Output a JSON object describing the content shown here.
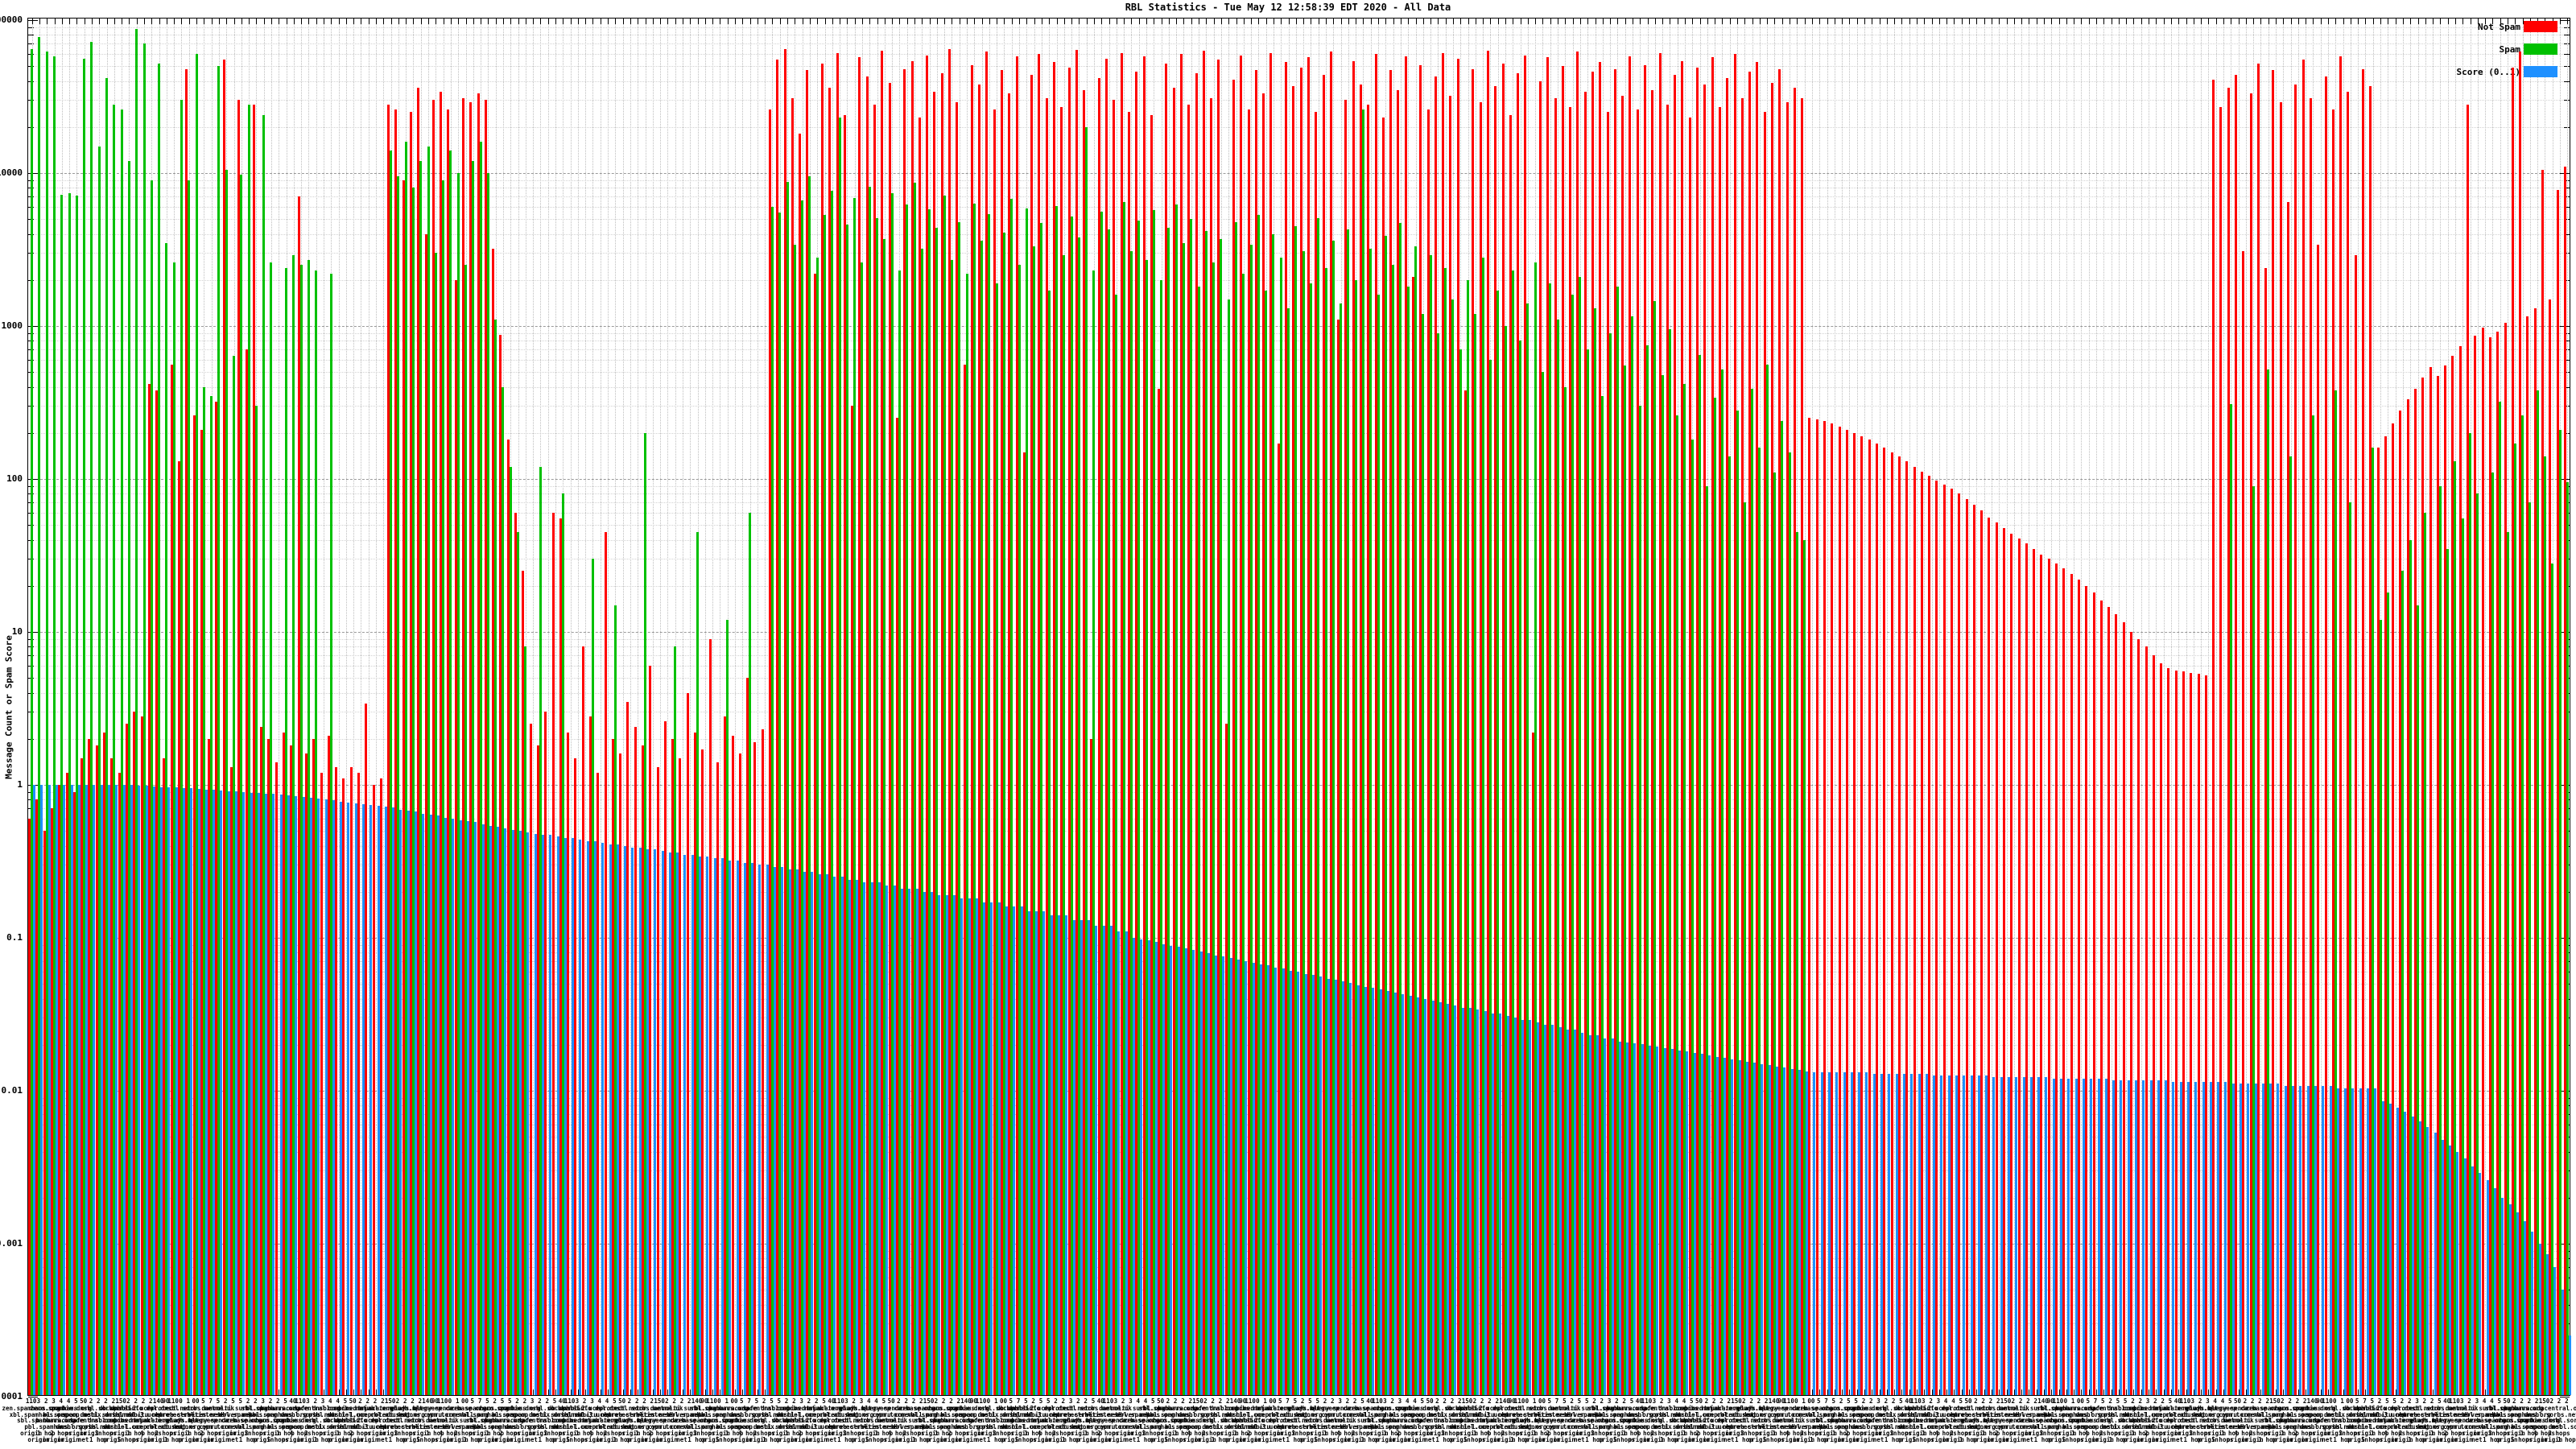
{
  "title": "RBL Statistics - Tue May 12 12:58:39 EDT 2020 - All Data",
  "y_axis": {
    "label": "Message Count or Spam Score",
    "scale": "log",
    "min": 0.0001,
    "max": 100000,
    "ticks": [
      {
        "label": "100000",
        "value": 100000
      },
      {
        "label": "10000",
        "value": 10000
      },
      {
        "label": "1000",
        "value": 1000
      },
      {
        "label": "100",
        "value": 100
      },
      {
        "label": "10",
        "value": 10
      },
      {
        "label": "1",
        "value": 1
      },
      {
        "label": "0.1",
        "value": 0.1
      },
      {
        "label": "0.01",
        "value": 0.01
      },
      {
        "label": "0.001",
        "value": 0.001
      },
      {
        "label": "0.0001",
        "value": 0.0001
      }
    ]
  },
  "legend": [
    {
      "label": "Not Spam",
      "color": "#ff0000"
    },
    {
      "label": "Spam",
      "color": "#00c000"
    },
    {
      "label": "Score (0..1)",
      "color": "#1e90ff"
    }
  ],
  "x_axis": {
    "legible_fragments": [
      "origin",
      "1 hop",
      "2 hops",
      "3 hops",
      "4 hops",
      "5 hops",
      "net net net origin",
      "origin origin origin",
      "1 hop1 hop",
      "110",
      "150",
      "140",
      "90",
      "0 1 00",
      "40",
      "50"
    ],
    "label_numbers_cycle": [
      "110",
      "3",
      "2",
      "3",
      "4",
      "4",
      "5",
      "50",
      "2",
      "2",
      "2",
      "2",
      "150",
      "2",
      "2",
      "2",
      "2",
      "140",
      "90",
      "110",
      "0",
      "1",
      "00",
      "5",
      "7",
      "5",
      "2",
      "5",
      "5",
      "2",
      "2",
      "3",
      "2",
      "2",
      "5",
      "40"
    ],
    "label_hosts_cycle": [
      "zen.spamhaus.org",
      "xbl.spamhaus.org",
      "sbl.spamhaus.org",
      "pbl.spamhaus.org",
      "zero.spamhaus.org",
      "bl.spamcop.net",
      "b.barracudacentral.org",
      "dnsbl.sorbs.net",
      "zombie.dnsbl.sorbs.net",
      "spam.dnsbl.sorbs.net",
      "safe.dnsbl.sorbs.net",
      "psbl.surriel.com",
      "db.wpbl.info",
      "ix.dnsbl.manitu.net",
      "combined.njabl.org",
      "dnsbl-1.uceprotect.net",
      "dnsbl-2.uceprotect.net",
      "dnsbl-3.uceprotect.net",
      "truncate.gbudb.net",
      "cbl.abuseat.org",
      "dul.dnsbl.sorbs.net",
      "korea.services.net",
      "relays.bl.gweep.ca",
      "bogons.cymru.com",
      "tor.dan.me.uk",
      "rbl.interserver.net",
      "query.senderbase.org",
      "opm.tornevall.org",
      "multi.surbl.org",
      "dbl.spamhaus.org"
    ],
    "label_qualifiers_cycle": [
      "origin",
      "origin",
      "1 hop",
      "origin",
      "2 hops",
      "origin",
      "origin",
      "net",
      "origin",
      "1 hop",
      "3 hops",
      "origin",
      "origin",
      "5 hops",
      "1 hop",
      "origin",
      "4 hops",
      "origin",
      "2 hops",
      "1 hop"
    ]
  },
  "chart_data": {
    "type": "bar",
    "title": "RBL Statistics - Tue May 12 12:58:39 EDT 2020 - All Data",
    "xlabel": "",
    "ylabel": "Message Count or Spam Score",
    "y_scale": "log",
    "ylim": [
      0.0001,
      100000
    ],
    "grid": "horizontal dashed at decades, dotted minors, vertical dotted per category",
    "legend_position": "top-right",
    "series": [
      {
        "name": "Not Spam",
        "color": "#ff0000",
        "values": [
          0.6,
          0.8,
          0.5,
          0.7,
          1,
          1.2,
          0.9,
          1.5,
          2,
          1.8,
          2.2,
          1.5,
          1.2,
          2.5,
          3,
          2.8,
          420,
          380,
          1.5,
          560,
          130,
          48000,
          260,
          210,
          2,
          320,
          55000,
          1.3,
          30000,
          700,
          28000,
          2.4,
          2,
          1.4,
          2.2,
          1.8,
          7000,
          1.6,
          2,
          1.2,
          2.1,
          1.3,
          1.1,
          1.3,
          1.2,
          3.4,
          1,
          1.1,
          28000,
          26000,
          9000,
          25000,
          36000,
          4000,
          30000,
          34000,
          26000,
          2000,
          31000,
          29000,
          33000,
          30000,
          3200,
          870,
          180,
          60,
          25,
          2.5,
          1.8,
          3,
          60,
          55,
          2.2,
          1.5,
          8,
          2.8,
          1.2,
          45,
          2,
          1.6,
          3.5,
          2.4,
          1.8,
          6,
          1.3,
          2.6,
          2,
          1.5,
          4,
          2.2,
          1.7,
          9,
          1.4,
          2.8,
          2.1,
          1.6,
          5,
          1.9,
          2.3,
          26000,
          55000,
          65000,
          31000,
          18000,
          47000,
          2200,
          52000,
          36000,
          61000,
          24000,
          300,
          57000,
          43000,
          28000,
          63000,
          39000,
          250,
          48000,
          54000,
          23000,
          59000,
          34000,
          45000,
          65000,
          29000,
          560,
          51000,
          38000,
          62000,
          26000,
          47000,
          33000,
          58000,
          150,
          44000,
          60000,
          31000,
          53000,
          27000,
          49000,
          64000,
          35000,
          2,
          42000,
          56000,
          30000,
          61000,
          25000,
          46000,
          58000,
          24000,
          390,
          52000,
          36000,
          60000,
          28000,
          45000,
          63000,
          31000,
          55000,
          2.5,
          41000,
          59000,
          26000,
          47000,
          33000,
          61000,
          170,
          53000,
          37000,
          49000,
          57000,
          25000,
          44000,
          62000,
          1100,
          30000,
          54000,
          38000,
          28000,
          60000,
          23000,
          47000,
          35000,
          58000,
          2100,
          51000,
          26000,
          43000,
          61000,
          32000,
          56000,
          380,
          48000,
          29000,
          63000,
          37000,
          52000,
          24000,
          45000,
          59000,
          2.2,
          40000,
          57000,
          31000,
          50000,
          27000,
          62000,
          34000,
          46000,
          53000,
          25000,
          48000,
          32000,
          58000,
          26000,
          51000,
          35000,
          61000,
          28000,
          44000,
          54000,
          23000,
          49000,
          38000,
          57000,
          27000,
          42000,
          60000,
          31000,
          46000,
          53000,
          25000,
          39000,
          48000,
          29000,
          36000,
          31000,
          250,
          245,
          240,
          230,
          220,
          210,
          200,
          190,
          180,
          170,
          160,
          150,
          140,
          130,
          120,
          112,
          105,
          98,
          92,
          86,
          80,
          74,
          68,
          62,
          56,
          52,
          48,
          44,
          41,
          38,
          35,
          32,
          30,
          28,
          26,
          24,
          22,
          20,
          18,
          16,
          14.5,
          13,
          11.5,
          10,
          9,
          8,
          7,
          6.2,
          5.8,
          5.6,
          5.5,
          5.4,
          5.3,
          5.2,
          41000,
          27000,
          36000,
          44000,
          3100,
          33000,
          52000,
          2400,
          47000,
          29000,
          6500,
          38000,
          55000,
          31000,
          3400,
          43000,
          26000,
          58000,
          34000,
          2900,
          48000,
          37000,
          160,
          190,
          230,
          280,
          330,
          390,
          460,
          540,
          470,
          550,
          640,
          740,
          28000,
          860,
          980,
          840,
          920,
          1050,
          49000,
          62000,
          1150,
          1300,
          10500,
          1500,
          7800,
          11000
        ]
      },
      {
        "name": "Spam",
        "color": "#00c000",
        "values": [
          65000,
          78000,
          62000,
          58000,
          7200,
          7400,
          7100,
          56000,
          72000,
          15000,
          42000,
          28000,
          26000,
          12000,
          88000,
          70000,
          9000,
          52000,
          3500,
          2600,
          30000,
          9000,
          60000,
          400,
          350,
          50000,
          10500,
          640,
          9800,
          28000,
          300,
          24000,
          2600,
          0,
          2400,
          2900,
          2500,
          2700,
          2300,
          0,
          2200,
          0,
          0,
          0,
          0,
          0,
          0,
          0,
          14000,
          9500,
          16000,
          8000,
          12000,
          15000,
          3000,
          9000,
          14000,
          10000,
          2500,
          12000,
          16000,
          10000,
          1100,
          400,
          120,
          45,
          8,
          0,
          120,
          0,
          0,
          80,
          0,
          0,
          0,
          30,
          0,
          0,
          15,
          0,
          0,
          0,
          200,
          0,
          0,
          0,
          8,
          0,
          0,
          45,
          0,
          0,
          0,
          12,
          0,
          0,
          60,
          0,
          0,
          6000,
          5500,
          8800,
          3400,
          6600,
          9500,
          2800,
          5300,
          7700,
          23000,
          4600,
          6900,
          2600,
          8100,
          5100,
          3700,
          7400,
          2300,
          6200,
          8600,
          3200,
          5800,
          4400,
          7100,
          2700,
          4800,
          2200,
          6300,
          3600,
          5400,
          1900,
          4100,
          6800,
          2500,
          5900,
          3300,
          4700,
          1700,
          6100,
          2900,
          5200,
          3800,
          20000,
          2300,
          5600,
          4300,
          1600,
          6500,
          3100,
          4900,
          2700,
          5700,
          2000,
          4400,
          6200,
          3500,
          5000,
          1800,
          4200,
          2600,
          3700,
          1500,
          4800,
          2200,
          3400,
          5300,
          1700,
          4000,
          2800,
          1300,
          4500,
          3100,
          1900,
          5100,
          2400,
          3600,
          1400,
          4300,
          2000,
          26000,
          3200,
          1600,
          3900,
          2500,
          4700,
          1800,
          3300,
          1200,
          2900,
          900,
          2400,
          1500,
          700,
          2000,
          1200,
          2800,
          600,
          1700,
          1000,
          2300,
          800,
          1400,
          2600,
          500,
          1900,
          1100,
          400,
          1600,
          2100,
          700,
          1300,
          350,
          900,
          1800,
          550,
          1150,
          300,
          750,
          1450,
          480,
          950,
          260,
          420,
          180,
          650,
          90,
          340,
          520,
          140,
          280,
          70,
          390,
          160,
          560,
          110,
          240,
          150,
          45,
          40,
          0,
          0,
          0,
          0,
          0,
          0,
          0,
          0,
          0,
          0,
          0,
          0,
          0,
          0,
          0,
          0,
          0,
          0,
          0,
          0,
          0,
          0,
          0,
          0,
          0,
          0,
          0,
          0,
          0,
          0,
          0,
          0,
          0,
          0,
          0,
          0,
          0,
          0,
          0,
          0,
          0,
          0,
          0,
          0,
          0,
          0,
          0,
          0,
          0,
          0,
          0,
          0,
          0,
          0,
          0,
          0,
          310,
          0,
          0,
          90,
          0,
          520,
          0,
          0,
          140,
          0,
          0,
          260,
          0,
          0,
          380,
          0,
          70,
          0,
          0,
          160,
          12,
          18,
          0,
          25,
          40,
          15,
          60,
          0,
          90,
          35,
          130,
          55,
          200,
          80,
          0,
          110,
          320,
          45,
          170,
          260,
          70,
          380,
          140,
          28,
          210,
          95
        ]
      },
      {
        "name": "Score (0..1)",
        "color": "#1e90ff",
        "values": [
          1,
          1,
          1,
          1,
          1,
          1,
          1,
          1,
          1,
          1,
          1,
          1,
          1,
          1,
          0.99,
          0.99,
          0.98,
          0.97,
          0.97,
          0.96,
          0.95,
          0.95,
          0.94,
          0.93,
          0.93,
          0.92,
          0.91,
          0.91,
          0.9,
          0.89,
          0.89,
          0.88,
          0.87,
          0.86,
          0.85,
          0.84,
          0.83,
          0.82,
          0.81,
          0.8,
          0.79,
          0.78,
          0.77,
          0.76,
          0.75,
          0.74,
          0.73,
          0.72,
          0.71,
          0.69,
          0.68,
          0.67,
          0.65,
          0.64,
          0.63,
          0.61,
          0.6,
          0.59,
          0.58,
          0.57,
          0.55,
          0.54,
          0.53,
          0.52,
          0.51,
          0.5,
          0.49,
          0.48,
          0.47,
          0.47,
          0.46,
          0.45,
          0.45,
          0.44,
          0.43,
          0.43,
          0.42,
          0.41,
          0.41,
          0.4,
          0.39,
          0.39,
          0.38,
          0.38,
          0.37,
          0.36,
          0.36,
          0.35,
          0.35,
          0.34,
          0.34,
          0.33,
          0.33,
          0.32,
          0.32,
          0.31,
          0.31,
          0.3,
          0.3,
          0.29,
          0.29,
          0.28,
          0.28,
          0.27,
          0.27,
          0.26,
          0.26,
          0.25,
          0.25,
          0.24,
          0.24,
          0.23,
          0.23,
          0.23,
          0.22,
          0.22,
          0.21,
          0.21,
          0.21,
          0.2,
          0.2,
          0.19,
          0.19,
          0.19,
          0.18,
          0.18,
          0.18,
          0.17,
          0.17,
          0.17,
          0.16,
          0.16,
          0.16,
          0.15,
          0.15,
          0.15,
          0.14,
          0.14,
          0.14,
          0.13,
          0.13,
          0.13,
          0.12,
          0.12,
          0.12,
          0.11,
          0.11,
          0.1,
          0.098,
          0.096,
          0.094,
          0.091,
          0.089,
          0.087,
          0.085,
          0.083,
          0.081,
          0.079,
          0.077,
          0.076,
          0.074,
          0.072,
          0.07,
          0.069,
          0.067,
          0.066,
          0.064,
          0.063,
          0.061,
          0.06,
          0.058,
          0.057,
          0.056,
          0.054,
          0.053,
          0.052,
          0.051,
          0.049,
          0.048,
          0.047,
          0.046,
          0.045,
          0.044,
          0.043,
          0.042,
          0.041,
          0.04,
          0.039,
          0.038,
          0.037,
          0.036,
          0.035,
          0.035,
          0.034,
          0.033,
          0.032,
          0.032,
          0.031,
          0.03,
          0.029,
          0.029,
          0.028,
          0.027,
          0.027,
          0.026,
          0.025,
          0.025,
          0.024,
          0.023,
          0.023,
          0.022,
          0.022,
          0.021,
          0.0208,
          0.0205,
          0.0201,
          0.0197,
          0.0194,
          0.019,
          0.0187,
          0.0183,
          0.018,
          0.0177,
          0.0174,
          0.017,
          0.0167,
          0.0164,
          0.0161,
          0.0158,
          0.0155,
          0.0153,
          0.015,
          0.0147,
          0.0144,
          0.0142,
          0.0139,
          0.0137,
          0.0134,
          0.0132,
          0.0132,
          0.0132,
          0.0132,
          0.0132,
          0.0132,
          0.0132,
          0.0132,
          0.0129,
          0.0129,
          0.0129,
          0.0129,
          0.0129,
          0.0129,
          0.0129,
          0.0129,
          0.0126,
          0.0126,
          0.0126,
          0.0126,
          0.0126,
          0.0126,
          0.0126,
          0.0126,
          0.0123,
          0.0123,
          0.0123,
          0.0123,
          0.0123,
          0.0123,
          0.0123,
          0.0123,
          0.012,
          0.012,
          0.012,
          0.012,
          0.012,
          0.012,
          0.012,
          0.012,
          0.0117,
          0.0117,
          0.0117,
          0.0117,
          0.0117,
          0.0117,
          0.0117,
          0.0117,
          0.0114,
          0.0114,
          0.0114,
          0.0114,
          0.0114,
          0.0114,
          0.0114,
          0.0114,
          0.0111,
          0.0111,
          0.0111,
          0.0111,
          0.0111,
          0.0111,
          0.0111,
          0.0108,
          0.0108,
          0.0108,
          0.0108,
          0.0108,
          0.0108,
          0.0108,
          0.0104,
          0.0104,
          0.0104,
          0.0104,
          0.0104,
          0.0104,
          0.0085,
          0.0082,
          0.0078,
          0.0073,
          0.0068,
          0.0063,
          0.0058,
          0.0053,
          0.0048,
          0.0044,
          0.004,
          0.0036,
          0.0032,
          0.0029,
          0.0026,
          0.0023,
          0.002,
          0.0018,
          0.0016,
          0.0014,
          0.0012,
          0.001,
          0.00085,
          0.0007,
          0.0005,
          0.00025
        ]
      }
    ]
  }
}
